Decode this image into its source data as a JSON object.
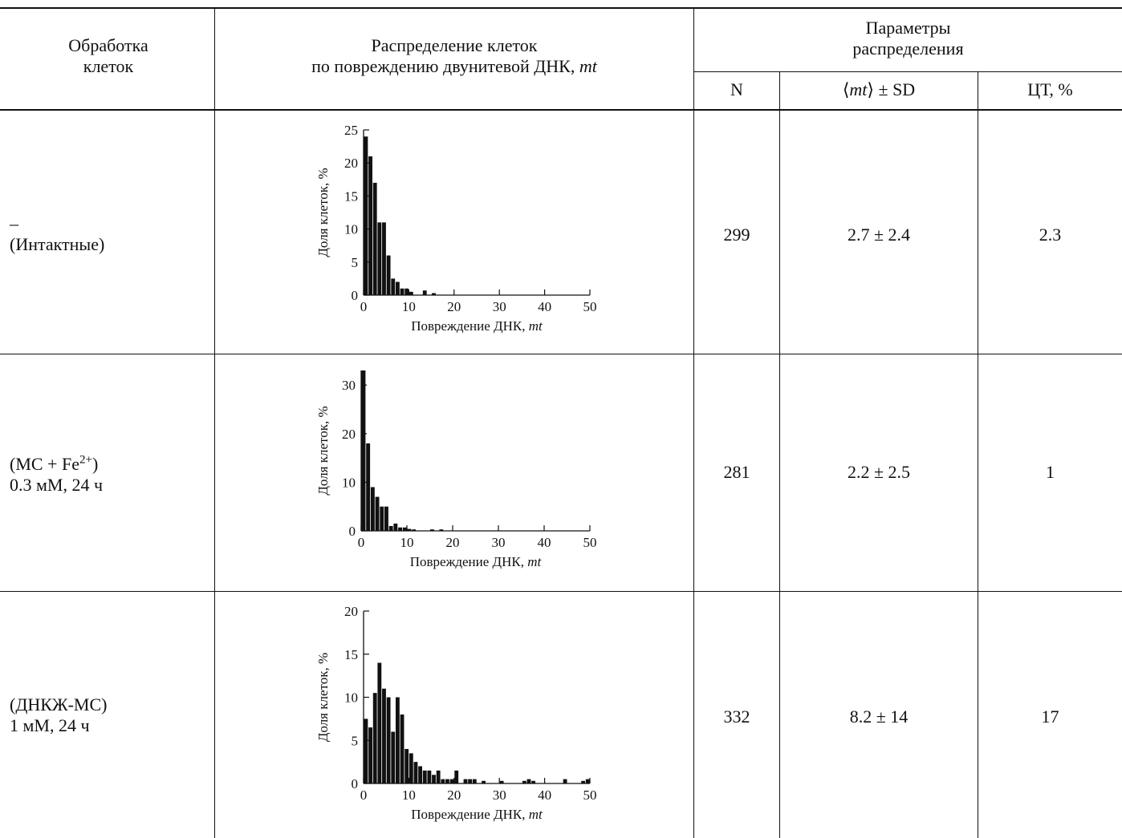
{
  "header": {
    "col_treatment": [
      "Обработка",
      "клеток"
    ],
    "col_distribution": [
      "Распределение клеток",
      "по повреждению двунитевой ДНК, "
    ],
    "col_distribution_italic": "mt",
    "params_group": [
      "Параметры",
      "распределения"
    ],
    "col_n": "N",
    "col_mean_prefix": "⟨",
    "col_mean_italic": "mt",
    "col_mean_suffix": "⟩ ± SD",
    "col_ct": "ЦТ, %"
  },
  "rows": [
    {
      "treatment_line1": "–",
      "treatment_line2": "(Интактные)",
      "n": "299",
      "mean_sd": "2.7 ± 2.4",
      "ct": "2.3"
    },
    {
      "treatment_line1_base": "(МС + Fe",
      "treatment_line1_sup": "2+",
      "treatment_line1_end": ")",
      "treatment_line2": "0.3 мМ, 24 ч",
      "n": "281",
      "mean_sd": "2.2 ± 2.5",
      "ct": "1"
    },
    {
      "treatment_line1": "(ДНКЖ-МС)",
      "treatment_line2": "1 мМ, 24 ч",
      "n": "332",
      "mean_sd": "8.2 ± 14",
      "ct": "17"
    }
  ],
  "chart_data": [
    {
      "type": "bar",
      "xlabel": "Повреждение ДНК, mt",
      "ylabel": "Доля клеток, %",
      "xlim": [
        0,
        50
      ],
      "ylim": [
        0,
        25
      ],
      "xticks": [
        0,
        10,
        20,
        30,
        40,
        50
      ],
      "yticks": [
        0,
        5,
        10,
        15,
        20,
        25
      ],
      "x": [
        0,
        1,
        2,
        3,
        4,
        5,
        6,
        7,
        8,
        9,
        10,
        11,
        12,
        13,
        14,
        15
      ],
      "values": [
        24,
        21,
        17,
        11,
        11,
        6,
        2.5,
        2,
        1,
        1,
        0.5,
        0,
        0,
        0.7,
        0,
        0.3
      ]
    },
    {
      "type": "bar",
      "xlabel": "Повреждение ДНК, mt",
      "ylabel": "Доля клеток, %",
      "xlim": [
        0,
        50
      ],
      "ylim": [
        0,
        33
      ],
      "xticks": [
        0,
        10,
        20,
        30,
        40,
        50
      ],
      "yticks": [
        0,
        10,
        20,
        30
      ],
      "x": [
        0,
        1,
        2,
        3,
        4,
        5,
        6,
        7,
        8,
        9,
        10,
        11,
        12,
        13,
        14,
        15,
        16,
        17
      ],
      "values": [
        33,
        18,
        9,
        7,
        5,
        5,
        1,
        1.5,
        0.7,
        0.7,
        0.4,
        0.3,
        0,
        0,
        0,
        0.3,
        0,
        0.3
      ]
    },
    {
      "type": "bar",
      "xlabel": "Повреждение ДНК, mt",
      "ylabel": "Доля клеток, %",
      "xlim": [
        0,
        50
      ],
      "ylim": [
        0,
        20
      ],
      "xticks": [
        0,
        10,
        20,
        30,
        40,
        50
      ],
      "yticks": [
        0,
        5,
        10,
        15,
        20
      ],
      "x": [
        0,
        1,
        2,
        3,
        4,
        5,
        6,
        7,
        8,
        9,
        10,
        11,
        12,
        13,
        14,
        15,
        16,
        17,
        18,
        19,
        20,
        22,
        23,
        24,
        26,
        30,
        35,
        36,
        37,
        44,
        48,
        49
      ],
      "values": [
        7.5,
        6.5,
        10.5,
        14,
        11,
        10,
        6,
        10,
        8,
        4,
        3.5,
        2.5,
        2,
        1.5,
        1.5,
        1,
        1.5,
        0.5,
        0.5,
        0.5,
        1.5,
        0.5,
        0.5,
        0.5,
        0.3,
        0.3,
        0.3,
        0.5,
        0.3,
        0.5,
        0.3,
        0.5
      ]
    }
  ]
}
